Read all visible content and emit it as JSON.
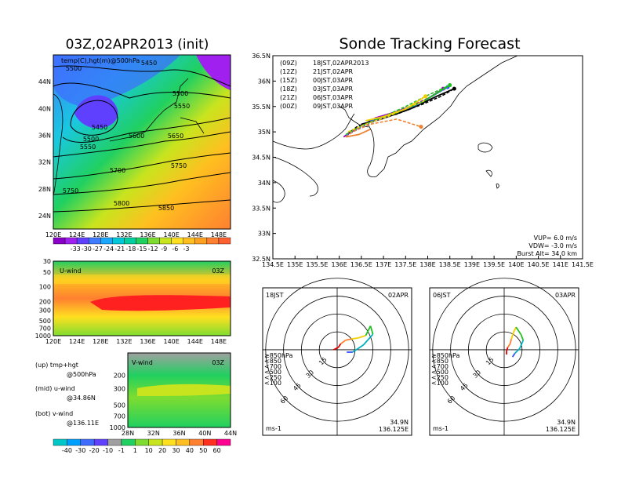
{
  "figure": {
    "main_title": "Sonde Tracking Forecast",
    "left_title": "03Z,02APR2013 (init)"
  },
  "colors": {
    "temp_scale": [
      "#8a00c8",
      "#a020f0",
      "#6040ff",
      "#3f7bff",
      "#19a8ff",
      "#00c8d8",
      "#00d0a0",
      "#20d060",
      "#7edc30",
      "#c8e41e",
      "#ffe020",
      "#ffbf20",
      "#ffa020",
      "#ff8030",
      "#ff6030"
    ],
    "wind_scale": [
      "#00c8c8",
      "#00a0ff",
      "#3f6bff",
      "#6040ff",
      "#a0a0a0",
      "#20d060",
      "#7edc30",
      "#c8e41e",
      "#ffe020",
      "#ffbf20",
      "#ff8030",
      "#ff3020",
      "#ff0090"
    ],
    "track_colors": {
      "09Z": "#000000",
      "12Z": "#a000c8",
      "15Z": "#3050ff",
      "18Z": "#20c020",
      "21Z": "#f0d000",
      "00Z": "#f08030"
    }
  },
  "chart_data": [
    {
      "id": "z500",
      "type": "heatmap",
      "title": "03Z,02APR2013 (init)",
      "label": "temp(C),hgt(m)@500hPa",
      "x_ticks": [
        "120E",
        "124E",
        "128E",
        "132E",
        "136E",
        "140E",
        "144E",
        "148E"
      ],
      "y_ticks": [
        "44N",
        "40N",
        "36N",
        "32N",
        "28N",
        "24N"
      ],
      "xlim": [
        120,
        150
      ],
      "ylim": [
        22,
        48
      ],
      "contour_labels": [
        "5450",
        "5500",
        "5500",
        "5550",
        "5450",
        "5500",
        "5550",
        "5600",
        "5650",
        "5700",
        "5750",
        "5750",
        "5800",
        "5850"
      ],
      "colorbar_labels": [
        "-33",
        "-30",
        "-27",
        "-24",
        "-21",
        "-18",
        "-15",
        "-12",
        "-9",
        "-6",
        "-3"
      ]
    },
    {
      "id": "uwind",
      "type": "heatmap",
      "label": "U-wind",
      "time": "03Z",
      "x_ticks": [
        "120E",
        "124E",
        "128E",
        "132E",
        "136E",
        "140E",
        "144E",
        "148E"
      ],
      "y_ticks": [
        "30",
        "50",
        "100",
        "200",
        "300",
        "500",
        "700",
        "1000"
      ],
      "xlim": [
        120,
        150
      ]
    },
    {
      "id": "vwind",
      "type": "heatmap",
      "label": "V-wind",
      "time": "03Z",
      "x_ticks": [
        "28N",
        "32N",
        "36N",
        "40N",
        "44N"
      ],
      "y_ticks": [
        "200",
        "300",
        "500",
        "700",
        "1000"
      ],
      "colorbar_labels": [
        "-40",
        "-30",
        "-20",
        "-10",
        "-1",
        "1",
        "10",
        "20",
        "30",
        "40",
        "50",
        "60"
      ]
    },
    {
      "id": "track",
      "type": "line",
      "x_ticks": [
        "134.5E",
        "135E",
        "135.5E",
        "136E",
        "136.5E",
        "137E",
        "137.5E",
        "138E",
        "138.5E",
        "139E",
        "139.5E",
        "140E",
        "140.5E",
        "141E",
        "141.5E"
      ],
      "y_ticks": [
        "36.5N",
        "36N",
        "35.5N",
        "35N",
        "34.5N",
        "34N",
        "33.5N",
        "33N",
        "32.5N"
      ],
      "xlim": [
        134.5,
        141.5
      ],
      "ylim": [
        32.5,
        36.5
      ],
      "legend": [
        {
          "run": "(09Z)",
          "time": "18JST,02APR2013"
        },
        {
          "run": "(12Z)",
          "time": "21JST,02APR"
        },
        {
          "run": "(15Z)",
          "time": "00JST,03APR"
        },
        {
          "run": "(18Z)",
          "time": "03JST,03APR"
        },
        {
          "run": "(21Z)",
          "time": "06JST,03APR"
        },
        {
          "run": "(00Z)",
          "time": "09JST,03APR"
        }
      ],
      "params": [
        "VUP= 6.0 m/s",
        "VDW= -3.0 m/s",
        "Burst Alt= 34.0 km"
      ],
      "series": [
        {
          "run": "09Z",
          "launch": [
            136.1,
            34.9
          ],
          "ascent": [
            [
              136.1,
              34.9
            ],
            [
              136.4,
              35.1
            ],
            [
              136.8,
              35.25
            ],
            [
              137.3,
              35.35
            ],
            [
              137.9,
              35.55
            ],
            [
              138.3,
              35.7
            ],
            [
              138.6,
              35.85
            ]
          ],
          "descent": [
            [
              138.6,
              35.85
            ],
            [
              138.2,
              35.7
            ],
            [
              137.6,
              35.45
            ],
            [
              136.95,
              35.25
            ],
            [
              136.5,
              35.15
            ]
          ]
        },
        {
          "run": "12Z",
          "launch": [
            136.1,
            34.9
          ],
          "ascent": [
            [
              136.1,
              34.9
            ],
            [
              136.5,
              35.12
            ],
            [
              137.0,
              35.3
            ],
            [
              137.6,
              35.5
            ],
            [
              138.1,
              35.7
            ],
            [
              138.35,
              35.85
            ]
          ],
          "descent": [
            [
              138.35,
              35.85
            ],
            [
              137.9,
              35.6
            ],
            [
              137.3,
              35.4
            ],
            [
              136.8,
              35.27
            ]
          ]
        },
        {
          "run": "15Z",
          "launch": [
            136.15,
            34.92
          ],
          "ascent": [
            [
              136.15,
              34.92
            ],
            [
              136.55,
              35.12
            ],
            [
              137.0,
              35.28
            ],
            [
              137.5,
              35.45
            ],
            [
              138.0,
              35.65
            ],
            [
              138.45,
              35.88
            ]
          ],
          "descent": [
            [
              138.45,
              35.88
            ],
            [
              137.8,
              35.55
            ],
            [
              137.2,
              35.35
            ],
            [
              136.7,
              35.22
            ]
          ]
        },
        {
          "run": "18Z",
          "launch": [
            136.15,
            34.95
          ],
          "ascent": [
            [
              136.15,
              34.95
            ],
            [
              136.5,
              35.12
            ],
            [
              137.0,
              35.3
            ],
            [
              137.5,
              35.5
            ],
            [
              138.0,
              35.72
            ],
            [
              138.5,
              35.92
            ]
          ],
          "descent": [
            [
              138.5,
              35.92
            ],
            [
              137.9,
              35.6
            ],
            [
              137.3,
              35.38
            ],
            [
              136.8,
              35.25
            ]
          ]
        },
        {
          "run": "21Z",
          "launch": [
            136.2,
            35.0
          ],
          "ascent": [
            [
              136.2,
              35.0
            ],
            [
              136.6,
              35.15
            ],
            [
              137.1,
              35.3
            ],
            [
              137.6,
              35.5
            ],
            [
              137.9,
              35.6
            ],
            [
              137.95,
              35.7
            ]
          ],
          "descent": [
            [
              137.95,
              35.7
            ],
            [
              137.5,
              35.45
            ],
            [
              137.0,
              35.3
            ],
            [
              136.6,
              35.22
            ]
          ]
        },
        {
          "run": "00Z",
          "launch": [
            136.15,
            34.9
          ],
          "ascent": [
            [
              136.15,
              34.9
            ],
            [
              136.3,
              35.0
            ],
            [
              136.7,
              35.15
            ],
            [
              137.3,
              35.25
            ],
            [
              137.85,
              35.1
            ]
          ],
          "descent": [
            [
              136.15,
              34.9
            ],
            [
              136.45,
              34.95
            ],
            [
              136.7,
              35.05
            ]
          ]
        }
      ]
    },
    {
      "id": "hodo1",
      "type": "line",
      "label": "18JST",
      "date": "02APR",
      "ring_labels": [
        "15",
        "30",
        "45",
        "60"
      ],
      "legend": [
        "≥850hPa",
        "<850",
        "<700",
        "<500",
        "<250",
        "<100"
      ],
      "legend_colors": [
        "#e00000",
        "#ff8030",
        "#f0d000",
        "#20c020",
        "#00b0c0",
        "#3050ff"
      ],
      "units": "ms-1",
      "location": [
        "34.9N",
        "136.125E"
      ],
      "ring_max": 60,
      "hodograph": [
        [
          -3,
          0
        ],
        [
          1,
          2
        ],
        [
          3,
          5
        ],
        [
          7,
          8
        ],
        [
          12,
          9
        ],
        [
          18,
          10
        ],
        [
          24,
          12
        ],
        [
          28,
          20
        ],
        [
          30,
          13
        ],
        [
          22,
          4
        ],
        [
          13,
          -2
        ],
        [
          8,
          -2
        ]
      ]
    },
    {
      "id": "hodo2",
      "type": "line",
      "label": "06JST",
      "date": "03APR",
      "ring_labels": [
        "15",
        "30",
        "45",
        "60"
      ],
      "legend": [
        "≥850hPa",
        "<850",
        "<700",
        "<500",
        "<250",
        "<100"
      ],
      "legend_colors": [
        "#e00000",
        "#ff8030",
        "#f0d000",
        "#20c020",
        "#00b0c0",
        "#3050ff"
      ],
      "units": "ms-1",
      "location": [
        "34.9N",
        "136.125E"
      ],
      "ring_max": 60,
      "hodograph": [
        [
          2,
          -4
        ],
        [
          2,
          -1
        ],
        [
          3,
          2
        ],
        [
          5,
          5
        ],
        [
          6,
          9
        ],
        [
          8,
          15
        ],
        [
          10,
          19
        ],
        [
          14,
          13
        ],
        [
          16,
          8
        ],
        [
          13,
          1
        ],
        [
          9,
          -3
        ],
        [
          7,
          -6
        ]
      ]
    }
  ]
}
